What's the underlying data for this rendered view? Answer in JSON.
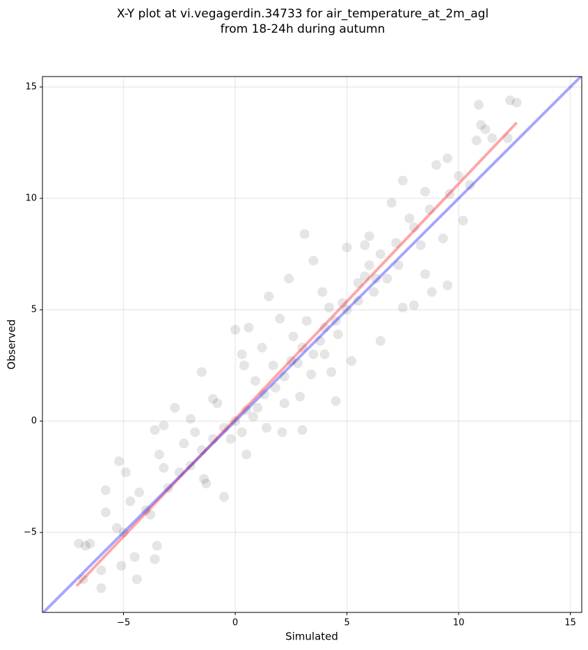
{
  "chart_data": {
    "type": "scatter",
    "title": [
      "X-Y plot at vi.vegagerdin.34733 for air_temperature_at_2m_agl",
      "from 18-24h during autumn"
    ],
    "xlabel": "Simulated",
    "ylabel": "Observed",
    "xlim": [
      -8.63,
      15.51
    ],
    "ylim": [
      -8.59,
      15.47
    ],
    "xticks": [
      {
        "value": -5,
        "label": "−5"
      },
      0,
      5,
      10,
      15
    ],
    "yticks": [
      {
        "value": -5,
        "label": "−5"
      },
      0,
      5,
      10,
      15
    ],
    "grid": true,
    "color": "#000000",
    "alpha": 0.1,
    "x": [
      -7,
      -6.7,
      -6.5,
      -6.8,
      -6,
      -6,
      -5.8,
      -5.8,
      -5.2,
      -4.9,
      -4.5,
      -4.4,
      -5.1,
      -5.3,
      -4.7,
      -4.3,
      -3.6,
      -3.5,
      -3.8,
      -3.4,
      -3.6,
      -3.2,
      -2.7,
      -2,
      -1.5,
      -1,
      -1.3,
      -0.5,
      0.5,
      0.3,
      0,
      0.6,
      1.2,
      1.4,
      2.1,
      2.2,
      2.9,
      3,
      1.5,
      2,
      2.4,
      3.1,
      3.5,
      4,
      4.5,
      4.3,
      5.2,
      6.5,
      5.5,
      5,
      6,
      7,
      7.5,
      8.5,
      9,
      9.5,
      10,
      10.5,
      10.2,
      9.3,
      9.5,
      8.8,
      8,
      7.5,
      8.5,
      7.3,
      10.8,
      11,
      11.5,
      10.9,
      12.3,
      12.6,
      12.2,
      11.2,
      6,
      6.5,
      5.8,
      6.2,
      5,
      4.5,
      4.8,
      4,
      3.5,
      3,
      2.5,
      2.2,
      1.8,
      1,
      0.8,
      0.5,
      0,
      -0.5,
      -1,
      -1.5,
      -2,
      -2.5,
      -3,
      -4,
      -5,
      -0.2,
      0.3,
      1.3,
      2.8,
      3.8,
      4.2,
      5.5,
      6.8,
      7.2,
      8,
      8.7,
      9.6,
      3.2,
      2.6,
      1.7,
      0.9,
      -0.8,
      -1.8,
      -2.3,
      -3.2,
      -1.4,
      0.4,
      3.9,
      5.8,
      4.6,
      3.4,
      6.3,
      7.8,
      8.3
    ],
    "y": [
      -5.5,
      -5.6,
      -5.5,
      -7.1,
      -7.5,
      -6.7,
      -3.1,
      -4.1,
      -1.8,
      -2.3,
      -6.1,
      -7.1,
      -6.5,
      -4.8,
      -3.6,
      -3.2,
      -6.2,
      -5.6,
      -4.2,
      -1.5,
      -0.4,
      -0.2,
      0.6,
      0.1,
      2.2,
      1,
      -2.8,
      -3.4,
      -1.5,
      3,
      4.1,
      4.2,
      3.3,
      -0.3,
      -0.5,
      0.8,
      1.1,
      -0.4,
      5.6,
      4.6,
      6.4,
      8.4,
      7.2,
      3,
      0.9,
      2.2,
      2.7,
      3.6,
      6.2,
      7.8,
      8.3,
      9.8,
      10.8,
      10.3,
      11.5,
      11.8,
      11,
      10.6,
      9,
      8.2,
      6.1,
      5.8,
      5.2,
      5.1,
      6.6,
      7,
      12.6,
      13.3,
      12.7,
      14.2,
      14.4,
      14.3,
      12.7,
      13.1,
      7,
      7.5,
      6.5,
      5.8,
      5,
      4.5,
      5.3,
      4.2,
      3,
      3.3,
      2.7,
      2,
      1.5,
      0.6,
      0.2,
      0.5,
      0,
      -0.3,
      -0.8,
      -1.3,
      -2,
      -2.3,
      -3,
      -4,
      -5,
      -0.8,
      -0.5,
      1.2,
      2.6,
      3.6,
      5.1,
      5.4,
      6.4,
      8,
      8.7,
      9.5,
      10.2,
      4.5,
      3.8,
      2.5,
      1.8,
      0.8,
      -0.5,
      -1,
      -2.1,
      -2.6,
      2.5,
      5.8,
      7.9,
      3.9,
      2.1,
      6.4,
      9.1,
      7.9
    ],
    "lines": [
      {
        "color": "#ff0000",
        "x": [
          -7.1,
          12.6
        ],
        "y": [
          -7.4,
          13.4
        ]
      },
      {
        "color": "#0000ff",
        "x": [
          -8.63,
          15.51
        ],
        "y": [
          -8.63,
          15.51
        ]
      }
    ]
  }
}
